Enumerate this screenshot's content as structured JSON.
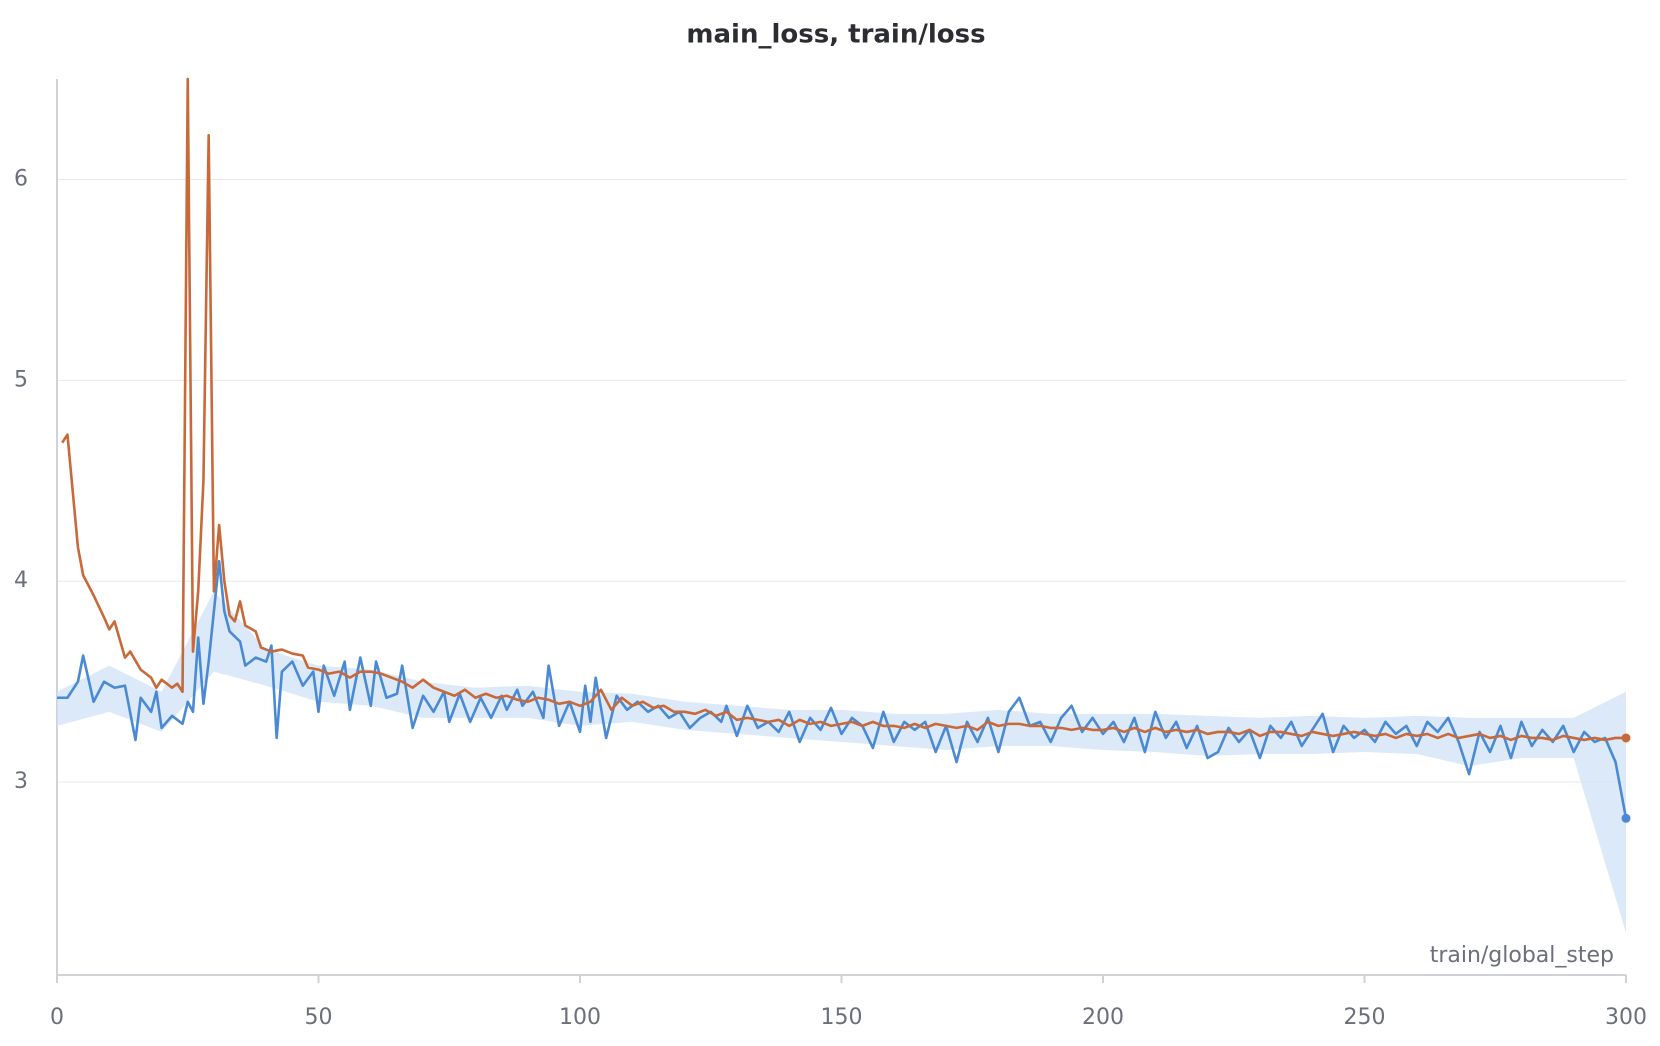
{
  "chart_data": {
    "type": "line",
    "title": "main_loss, train/loss",
    "x_label": "train/global_step",
    "xlim": [
      0,
      300
    ],
    "xticks": [
      0,
      50,
      100,
      150,
      200,
      250,
      300
    ],
    "ylim": [
      2.04,
      6.5
    ],
    "yticks": [
      3,
      4,
      5,
      6
    ],
    "grid": true,
    "band": {
      "color": "#cfe2f6",
      "x": [
        0,
        10,
        20,
        30,
        40,
        50,
        60,
        70,
        80,
        90,
        100,
        110,
        120,
        130,
        140,
        150,
        160,
        170,
        180,
        190,
        200,
        210,
        220,
        230,
        240,
        250,
        260,
        270,
        280,
        290,
        300
      ],
      "lower": [
        3.28,
        3.35,
        3.25,
        3.55,
        3.48,
        3.4,
        3.38,
        3.32,
        3.32,
        3.32,
        3.28,
        3.3,
        3.26,
        3.24,
        3.22,
        3.2,
        3.18,
        3.16,
        3.18,
        3.18,
        3.16,
        3.15,
        3.13,
        3.14,
        3.14,
        3.15,
        3.14,
        3.08,
        3.12,
        3.12,
        2.25
      ],
      "upper": [
        3.45,
        3.58,
        3.45,
        3.95,
        3.66,
        3.58,
        3.56,
        3.5,
        3.47,
        3.48,
        3.45,
        3.44,
        3.4,
        3.38,
        3.36,
        3.36,
        3.34,
        3.34,
        3.36,
        3.34,
        3.34,
        3.34,
        3.33,
        3.32,
        3.33,
        3.32,
        3.33,
        3.32,
        3.32,
        3.32,
        3.45
      ]
    },
    "series": [
      {
        "color": "#4a8ad4",
        "x": [
          0,
          2,
          4,
          5,
          7,
          9,
          11,
          13,
          15,
          16,
          18,
          19,
          20,
          22,
          24,
          25,
          26,
          27,
          28,
          29,
          31,
          32,
          33,
          35,
          36,
          38,
          40,
          41,
          42,
          43,
          45,
          47,
          49,
          50,
          51,
          53,
          55,
          56,
          58,
          60,
          61,
          63,
          65,
          66,
          68,
          70,
          72,
          74,
          75,
          77,
          79,
          81,
          83,
          85,
          86,
          88,
          89,
          91,
          93,
          94,
          96,
          98,
          100,
          101,
          102,
          103,
          105,
          107,
          109,
          111,
          113,
          115,
          117,
          119,
          121,
          123,
          125,
          127,
          128,
          130,
          132,
          134,
          136,
          138,
          140,
          142,
          144,
          146,
          148,
          150,
          152,
          154,
          156,
          158,
          160,
          162,
          164,
          166,
          168,
          170,
          172,
          174,
          176,
          178,
          180,
          182,
          184,
          186,
          188,
          190,
          192,
          194,
          196,
          198,
          200,
          202,
          204,
          206,
          208,
          210,
          212,
          214,
          216,
          218,
          220,
          222,
          224,
          226,
          228,
          230,
          232,
          234,
          236,
          238,
          240,
          242,
          244,
          246,
          248,
          250,
          252,
          254,
          256,
          258,
          260,
          262,
          264,
          266,
          268,
          270,
          272,
          274,
          276,
          278,
          280,
          282,
          284,
          286,
          288,
          290,
          292,
          294,
          296,
          298,
          300
        ],
        "values": [
          3.42,
          3.42,
          3.5,
          3.63,
          3.4,
          3.5,
          3.47,
          3.48,
          3.21,
          3.42,
          3.35,
          3.45,
          3.27,
          3.33,
          3.29,
          3.4,
          3.35,
          3.72,
          3.39,
          3.6,
          4.1,
          3.85,
          3.75,
          3.7,
          3.58,
          3.62,
          3.6,
          3.68,
          3.22,
          3.55,
          3.6,
          3.48,
          3.55,
          3.35,
          3.58,
          3.43,
          3.6,
          3.36,
          3.62,
          3.38,
          3.6,
          3.42,
          3.44,
          3.58,
          3.27,
          3.43,
          3.35,
          3.45,
          3.3,
          3.44,
          3.3,
          3.42,
          3.32,
          3.43,
          3.36,
          3.46,
          3.38,
          3.45,
          3.32,
          3.58,
          3.28,
          3.4,
          3.25,
          3.48,
          3.3,
          3.52,
          3.22,
          3.43,
          3.36,
          3.4,
          3.35,
          3.38,
          3.32,
          3.35,
          3.27,
          3.32,
          3.35,
          3.3,
          3.38,
          3.23,
          3.38,
          3.27,
          3.3,
          3.25,
          3.35,
          3.2,
          3.32,
          3.26,
          3.37,
          3.24,
          3.32,
          3.28,
          3.17,
          3.35,
          3.2,
          3.3,
          3.26,
          3.3,
          3.15,
          3.28,
          3.1,
          3.3,
          3.2,
          3.32,
          3.15,
          3.35,
          3.42,
          3.28,
          3.3,
          3.2,
          3.32,
          3.38,
          3.25,
          3.32,
          3.24,
          3.3,
          3.2,
          3.32,
          3.15,
          3.35,
          3.22,
          3.3,
          3.17,
          3.28,
          3.12,
          3.15,
          3.27,
          3.2,
          3.26,
          3.12,
          3.28,
          3.22,
          3.3,
          3.18,
          3.26,
          3.34,
          3.15,
          3.28,
          3.22,
          3.26,
          3.2,
          3.3,
          3.24,
          3.28,
          3.18,
          3.3,
          3.25,
          3.32,
          3.2,
          3.04,
          3.25,
          3.15,
          3.28,
          3.12,
          3.3,
          3.18,
          3.26,
          3.2,
          3.28,
          3.15,
          3.25,
          3.2,
          3.22,
          3.1,
          2.82
        ]
      },
      {
        "color": "#c8693a",
        "x": [
          1,
          2,
          3,
          4,
          5,
          7,
          9,
          10,
          11,
          13,
          14,
          16,
          18,
          19,
          20,
          22,
          23,
          24,
          25,
          26,
          27,
          28,
          29,
          30,
          31,
          32,
          33,
          34,
          35,
          36,
          38,
          39,
          41,
          43,
          45,
          47,
          48,
          50,
          52,
          54,
          56,
          58,
          60,
          62,
          64,
          66,
          68,
          70,
          72,
          74,
          76,
          78,
          80,
          82,
          84,
          86,
          88,
          90,
          92,
          94,
          96,
          98,
          100,
          102,
          104,
          106,
          108,
          110,
          112,
          114,
          116,
          118,
          120,
          122,
          124,
          126,
          128,
          130,
          132,
          134,
          136,
          138,
          140,
          142,
          144,
          146,
          148,
          150,
          152,
          154,
          156,
          158,
          160,
          162,
          164,
          166,
          168,
          170,
          172,
          174,
          176,
          178,
          180,
          182,
          184,
          186,
          188,
          190,
          192,
          194,
          196,
          198,
          200,
          202,
          204,
          206,
          208,
          210,
          212,
          214,
          216,
          218,
          220,
          222,
          224,
          226,
          228,
          230,
          232,
          234,
          236,
          238,
          240,
          242,
          244,
          246,
          248,
          250,
          252,
          254,
          256,
          258,
          260,
          262,
          264,
          266,
          268,
          270,
          272,
          274,
          276,
          278,
          280,
          282,
          284,
          286,
          288,
          290,
          292,
          294,
          296,
          298,
          300
        ],
        "values": [
          4.69,
          4.73,
          4.45,
          4.17,
          4.03,
          3.93,
          3.82,
          3.76,
          3.8,
          3.62,
          3.65,
          3.56,
          3.52,
          3.47,
          3.51,
          3.47,
          3.49,
          3.45,
          6.5,
          3.65,
          3.95,
          4.5,
          6.22,
          3.95,
          4.28,
          4.0,
          3.83,
          3.8,
          3.9,
          3.78,
          3.75,
          3.67,
          3.65,
          3.66,
          3.64,
          3.63,
          3.57,
          3.56,
          3.54,
          3.55,
          3.52,
          3.55,
          3.55,
          3.54,
          3.52,
          3.5,
          3.47,
          3.51,
          3.47,
          3.45,
          3.43,
          3.46,
          3.42,
          3.44,
          3.42,
          3.43,
          3.41,
          3.4,
          3.42,
          3.41,
          3.39,
          3.4,
          3.38,
          3.4,
          3.46,
          3.36,
          3.42,
          3.38,
          3.4,
          3.37,
          3.38,
          3.35,
          3.35,
          3.34,
          3.36,
          3.33,
          3.35,
          3.31,
          3.32,
          3.31,
          3.3,
          3.31,
          3.28,
          3.31,
          3.29,
          3.3,
          3.28,
          3.29,
          3.3,
          3.28,
          3.3,
          3.28,
          3.28,
          3.27,
          3.29,
          3.27,
          3.29,
          3.28,
          3.27,
          3.28,
          3.26,
          3.3,
          3.28,
          3.29,
          3.29,
          3.28,
          3.28,
          3.27,
          3.27,
          3.26,
          3.27,
          3.26,
          3.26,
          3.27,
          3.25,
          3.27,
          3.25,
          3.27,
          3.25,
          3.26,
          3.25,
          3.26,
          3.24,
          3.25,
          3.25,
          3.24,
          3.26,
          3.23,
          3.25,
          3.25,
          3.24,
          3.23,
          3.25,
          3.24,
          3.23,
          3.24,
          3.25,
          3.24,
          3.23,
          3.24,
          3.22,
          3.24,
          3.23,
          3.24,
          3.22,
          3.24,
          3.22,
          3.23,
          3.24,
          3.22,
          3.23,
          3.21,
          3.23,
          3.22,
          3.22,
          3.21,
          3.23,
          3.22,
          3.21,
          3.22,
          3.21,
          3.22,
          3.22
        ]
      }
    ]
  }
}
